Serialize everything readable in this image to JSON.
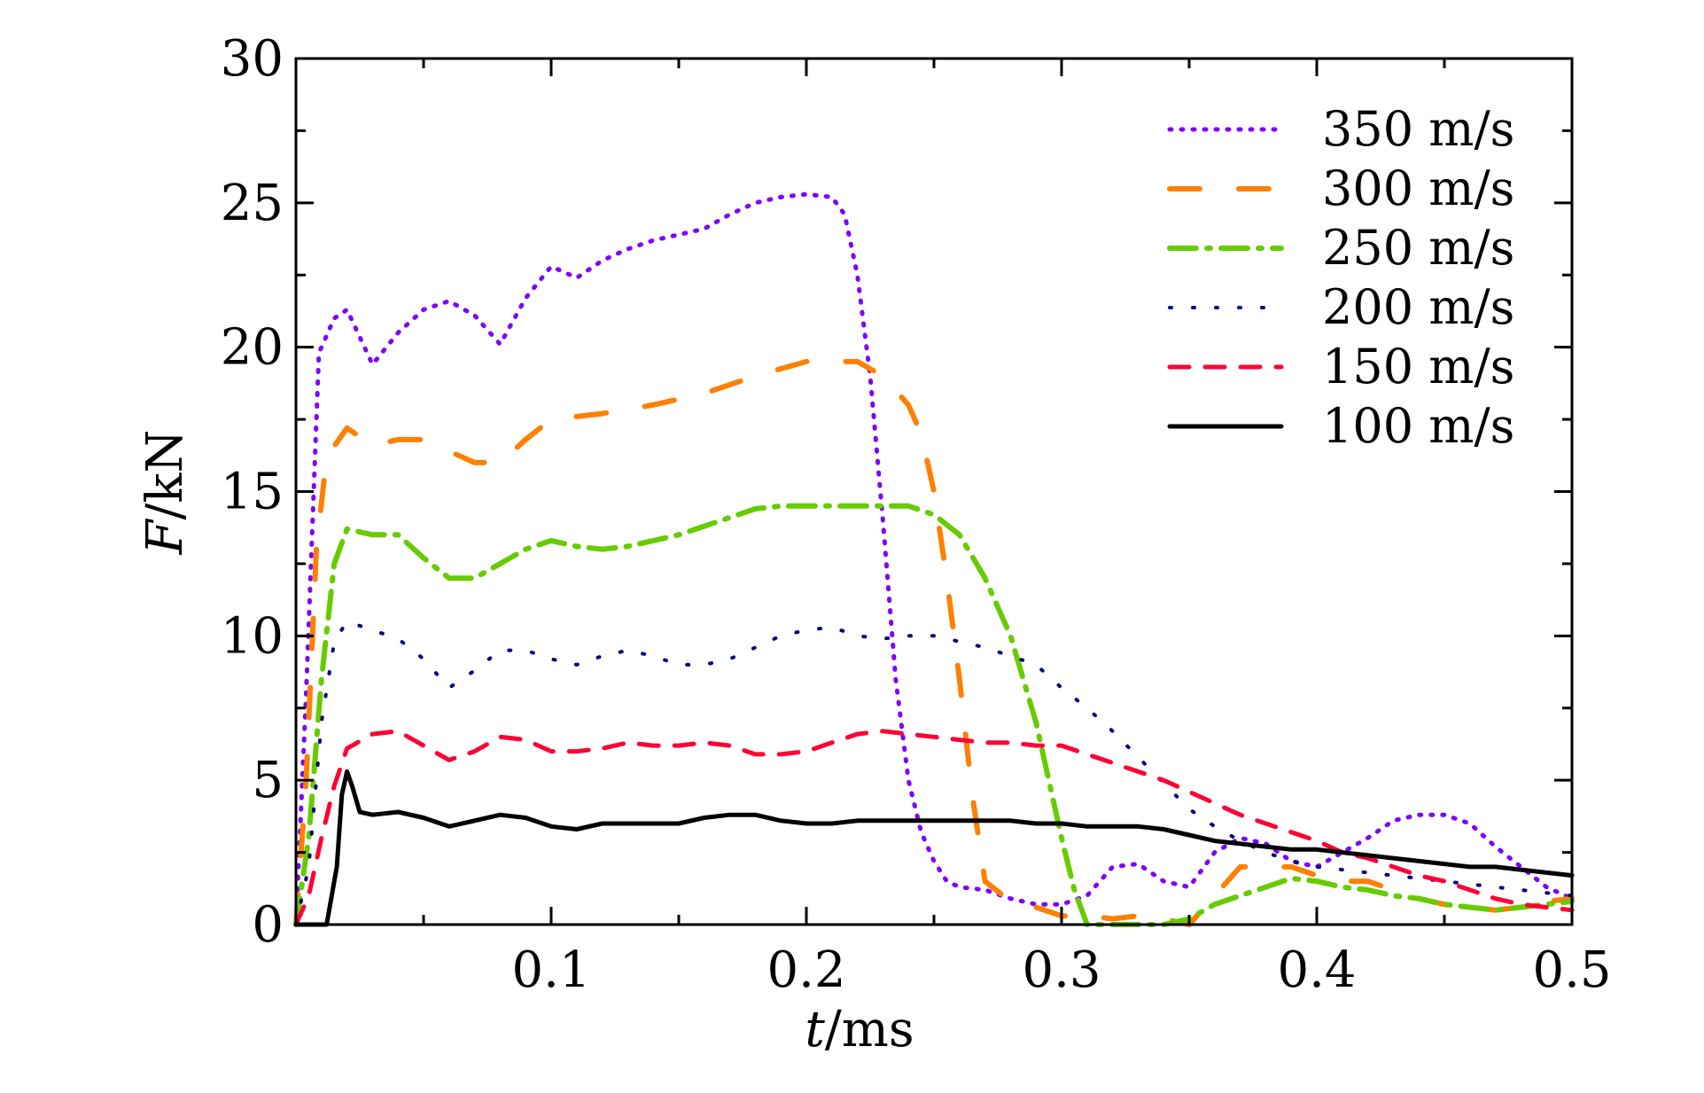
{
  "chart_data": {
    "type": "line",
    "title": "",
    "xlabel_italic": "t",
    "xlabel_unit": "/ms",
    "ylabel_italic": "F",
    "ylabel_unit": "/kN",
    "xlim": [
      0,
      0.5
    ],
    "ylim": [
      0,
      30
    ],
    "xticks": [
      0.1,
      0.2,
      0.3,
      0.4,
      0.5
    ],
    "yticks": [
      0,
      5,
      10,
      15,
      20,
      25,
      30
    ],
    "xtick_labels": [
      "0.1",
      "0.2",
      "0.3",
      "0.4",
      "0.5"
    ],
    "ytick_labels": [
      "0",
      "5",
      "10",
      "15",
      "20",
      "25",
      "30"
    ],
    "grid": false,
    "legend_position": "top-right",
    "series": [
      {
        "name": "350 m/s",
        "color": "#7F00FF",
        "style": "dotted",
        "x": [
          0,
          0.004,
          0.009,
          0.015,
          0.02,
          0.03,
          0.04,
          0.05,
          0.06,
          0.07,
          0.08,
          0.09,
          0.1,
          0.11,
          0.12,
          0.13,
          0.14,
          0.15,
          0.16,
          0.17,
          0.18,
          0.19,
          0.2,
          0.21,
          0.215,
          0.22,
          0.225,
          0.23,
          0.235,
          0.24,
          0.245,
          0.25,
          0.255,
          0.26,
          0.27,
          0.28,
          0.29,
          0.3,
          0.31,
          0.32,
          0.33,
          0.34,
          0.35,
          0.36,
          0.37,
          0.38,
          0.39,
          0.4,
          0.41,
          0.42,
          0.43,
          0.44,
          0.45,
          0.46,
          0.47,
          0.48,
          0.49,
          0.5
        ],
        "values": [
          0,
          8,
          19.8,
          21.0,
          21.3,
          19.4,
          20.5,
          21.3,
          21.6,
          21.1,
          20.1,
          21.7,
          22.8,
          22.4,
          23.0,
          23.4,
          23.7,
          23.9,
          24.1,
          24.6,
          25.0,
          25.2,
          25.3,
          25.2,
          24.6,
          22.5,
          19.0,
          14.0,
          8.5,
          5.0,
          3.2,
          2.2,
          1.5,
          1.3,
          1.2,
          0.9,
          0.7,
          0.7,
          1.0,
          2.0,
          2.1,
          1.5,
          1.3,
          2.5,
          3.0,
          2.8,
          2.2,
          2.0,
          2.5,
          3.0,
          3.6,
          3.8,
          3.8,
          3.5,
          2.7,
          2.0,
          1.3,
          0.9
        ]
      },
      {
        "name": "300 m/s",
        "color": "#FF8000",
        "style": "long-dash",
        "x": [
          0,
          0.004,
          0.008,
          0.012,
          0.02,
          0.03,
          0.04,
          0.05,
          0.06,
          0.07,
          0.08,
          0.09,
          0.1,
          0.12,
          0.14,
          0.16,
          0.18,
          0.2,
          0.22,
          0.23,
          0.24,
          0.245,
          0.25,
          0.255,
          0.26,
          0.265,
          0.27,
          0.28,
          0.29,
          0.3,
          0.31,
          0.32,
          0.33,
          0.34,
          0.35,
          0.36,
          0.37,
          0.38,
          0.39,
          0.4,
          0.41,
          0.42,
          0.43,
          0.44,
          0.45,
          0.46,
          0.47,
          0.48,
          0.49,
          0.5
        ],
        "values": [
          0,
          5,
          13,
          16.2,
          17.2,
          16.6,
          16.8,
          16.8,
          16.4,
          16.0,
          16.0,
          16.8,
          17.5,
          17.7,
          18.0,
          18.4,
          19.0,
          19.5,
          19.5,
          19.0,
          18.0,
          17.0,
          15.0,
          12.0,
          8.5,
          4.5,
          1.5,
          0.8,
          0.6,
          0.3,
          0.3,
          0.2,
          0.3,
          0.2,
          0.0,
          1.0,
          2.0,
          2.0,
          2.0,
          1.7,
          1.5,
          1.5,
          1.2,
          0.9,
          0.7,
          0.6,
          0.5,
          0.6,
          0.8,
          0.9
        ]
      },
      {
        "name": "250 m/s",
        "color": "#66CC00",
        "style": "dash-dot",
        "x": [
          0,
          0.005,
          0.01,
          0.015,
          0.02,
          0.03,
          0.04,
          0.05,
          0.06,
          0.07,
          0.08,
          0.09,
          0.1,
          0.11,
          0.12,
          0.13,
          0.14,
          0.15,
          0.16,
          0.17,
          0.18,
          0.19,
          0.2,
          0.21,
          0.22,
          0.23,
          0.24,
          0.25,
          0.26,
          0.27,
          0.28,
          0.285,
          0.29,
          0.295,
          0.3,
          0.305,
          0.31,
          0.32,
          0.33,
          0.34,
          0.35,
          0.36,
          0.37,
          0.38,
          0.39,
          0.4,
          0.41,
          0.42,
          0.43,
          0.44,
          0.45,
          0.46,
          0.47,
          0.48,
          0.49,
          0.5
        ],
        "values": [
          0,
          3,
          8.5,
          12.5,
          13.7,
          13.5,
          13.5,
          12.7,
          12.0,
          12.0,
          12.5,
          13.0,
          13.3,
          13.1,
          13.0,
          13.1,
          13.3,
          13.5,
          13.8,
          14.1,
          14.4,
          14.5,
          14.5,
          14.5,
          14.5,
          14.5,
          14.5,
          14.2,
          13.5,
          12.0,
          10.0,
          8.5,
          7.0,
          5.0,
          3.0,
          1.2,
          0.0,
          0.0,
          0.0,
          0.0,
          0.2,
          0.7,
          1.0,
          1.3,
          1.6,
          1.5,
          1.3,
          1.2,
          1.0,
          0.9,
          0.7,
          0.6,
          0.5,
          0.6,
          0.7,
          0.8
        ]
      },
      {
        "name": "200 m/s",
        "color": "#000080",
        "style": "sparse-dot",
        "x": [
          0,
          0.005,
          0.01,
          0.015,
          0.02,
          0.03,
          0.04,
          0.05,
          0.06,
          0.07,
          0.08,
          0.09,
          0.1,
          0.11,
          0.12,
          0.13,
          0.14,
          0.15,
          0.16,
          0.17,
          0.18,
          0.19,
          0.2,
          0.21,
          0.22,
          0.23,
          0.24,
          0.25,
          0.26,
          0.27,
          0.28,
          0.29,
          0.3,
          0.31,
          0.32,
          0.33,
          0.34,
          0.35,
          0.36,
          0.37,
          0.38,
          0.39,
          0.4,
          0.41,
          0.42,
          0.43,
          0.44,
          0.45,
          0.46,
          0.47,
          0.48,
          0.49,
          0.5
        ],
        "values": [
          0,
          2,
          7,
          9.8,
          10.5,
          10.2,
          9.9,
          9.2,
          8.2,
          8.8,
          9.5,
          9.5,
          9.2,
          9.0,
          9.3,
          9.5,
          9.3,
          9.0,
          9.0,
          9.2,
          9.6,
          10.0,
          10.2,
          10.3,
          10.0,
          9.9,
          10.0,
          10.0,
          9.8,
          9.6,
          9.3,
          9.0,
          8.2,
          7.5,
          6.7,
          5.8,
          4.9,
          4.0,
          3.4,
          2.9,
          2.5,
          2.2,
          2.0,
          1.9,
          1.8,
          1.7,
          1.6,
          1.5,
          1.4,
          1.3,
          1.2,
          1.1,
          1.0
        ]
      },
      {
        "name": "150 m/s",
        "color": "#FF0033",
        "style": "dashed",
        "x": [
          0,
          0.005,
          0.01,
          0.015,
          0.02,
          0.03,
          0.04,
          0.05,
          0.06,
          0.07,
          0.08,
          0.09,
          0.1,
          0.11,
          0.12,
          0.13,
          0.14,
          0.15,
          0.16,
          0.17,
          0.18,
          0.19,
          0.2,
          0.21,
          0.22,
          0.23,
          0.24,
          0.25,
          0.26,
          0.27,
          0.28,
          0.29,
          0.3,
          0.31,
          0.32,
          0.33,
          0.34,
          0.35,
          0.36,
          0.37,
          0.38,
          0.39,
          0.4,
          0.41,
          0.42,
          0.43,
          0.44,
          0.45,
          0.46,
          0.47,
          0.48,
          0.49,
          0.5
        ],
        "values": [
          0,
          1,
          3,
          4.8,
          6.1,
          6.6,
          6.7,
          6.2,
          5.7,
          6.0,
          6.5,
          6.4,
          6.0,
          6.0,
          6.1,
          6.3,
          6.2,
          6.2,
          6.3,
          6.2,
          5.9,
          5.9,
          6.0,
          6.3,
          6.6,
          6.7,
          6.6,
          6.5,
          6.4,
          6.3,
          6.3,
          6.2,
          6.2,
          5.9,
          5.6,
          5.3,
          5.0,
          4.6,
          4.2,
          3.8,
          3.5,
          3.2,
          2.9,
          2.5,
          2.3,
          2.0,
          1.7,
          1.5,
          1.2,
          0.9,
          0.7,
          0.6,
          0.5
        ]
      },
      {
        "name": "100 m/s",
        "color": "#000000",
        "style": "solid",
        "x": [
          0,
          0.008,
          0.012,
          0.016,
          0.018,
          0.02,
          0.022,
          0.025,
          0.03,
          0.04,
          0.05,
          0.06,
          0.07,
          0.08,
          0.09,
          0.1,
          0.11,
          0.12,
          0.13,
          0.14,
          0.15,
          0.16,
          0.17,
          0.18,
          0.19,
          0.2,
          0.21,
          0.22,
          0.23,
          0.24,
          0.25,
          0.26,
          0.27,
          0.28,
          0.29,
          0.3,
          0.31,
          0.32,
          0.33,
          0.34,
          0.35,
          0.36,
          0.37,
          0.38,
          0.39,
          0.4,
          0.41,
          0.42,
          0.43,
          0.44,
          0.45,
          0.46,
          0.47,
          0.48,
          0.49,
          0.5
        ],
        "values": [
          0,
          0,
          0,
          2,
          4.5,
          5.3,
          4.8,
          3.9,
          3.8,
          3.9,
          3.7,
          3.4,
          3.6,
          3.8,
          3.7,
          3.4,
          3.3,
          3.5,
          3.5,
          3.5,
          3.5,
          3.7,
          3.8,
          3.8,
          3.6,
          3.5,
          3.5,
          3.6,
          3.6,
          3.6,
          3.6,
          3.6,
          3.6,
          3.6,
          3.5,
          3.5,
          3.4,
          3.4,
          3.4,
          3.3,
          3.1,
          2.9,
          2.8,
          2.7,
          2.6,
          2.6,
          2.5,
          2.4,
          2.3,
          2.2,
          2.1,
          2.0,
          2.0,
          1.9,
          1.8,
          1.7
        ]
      }
    ]
  }
}
